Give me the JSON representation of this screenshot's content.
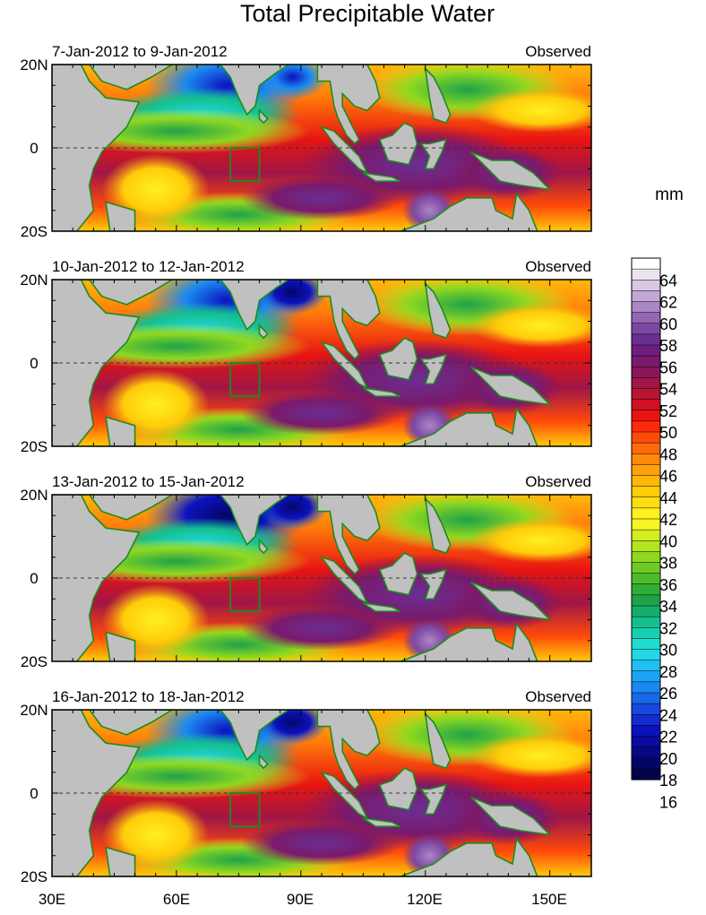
{
  "title": "Total Precipitable Water",
  "unit_label": "mm",
  "latitude_labels": [
    "20N",
    "0",
    "20S"
  ],
  "longitude_labels": [
    "30E",
    "60E",
    "90E",
    "120E",
    "150E"
  ],
  "panels": [
    {
      "date_range": "7-Jan-2012 to 9-Jan-2012",
      "status": "Observed"
    },
    {
      "date_range": "10-Jan-2012 to 12-Jan-2012",
      "status": "Observed"
    },
    {
      "date_range": "13-Jan-2012 to 15-Jan-2012",
      "status": "Observed"
    },
    {
      "date_range": "16-Jan-2012 to 18-Jan-2012",
      "status": "Observed"
    }
  ],
  "colorbar": {
    "labels": [
      "64",
      "62",
      "60",
      "58",
      "56",
      "54",
      "52",
      "50",
      "48",
      "46",
      "44",
      "42",
      "40",
      "38",
      "36",
      "34",
      "32",
      "30",
      "28",
      "26",
      "24",
      "22",
      "20",
      "18",
      "16"
    ],
    "colors": [
      "#ffffff",
      "#ece3f0",
      "#d9c8e3",
      "#c3a6d4",
      "#ab86c4",
      "#9466b4",
      "#7d47a4",
      "#6a2e92",
      "#6d1f80",
      "#7a1a6c",
      "#8a1758",
      "#a01646",
      "#b81434",
      "#d01124",
      "#e81412",
      "#ff2a0a",
      "#ff4a0a",
      "#ff6a0a",
      "#ff8a0a",
      "#ffa20a",
      "#ffb80a",
      "#ffcc0a",
      "#ffde10",
      "#fff020",
      "#f6f626",
      "#d4ee20",
      "#b2e420",
      "#8ed820",
      "#6ccc24",
      "#4cbc2c",
      "#30ac38",
      "#1ea24a",
      "#14ae6a",
      "#14c08e",
      "#16d0b0",
      "#20dcce",
      "#24d6e6",
      "#20c0f2",
      "#1ca4f4",
      "#1a88f0",
      "#1868e8",
      "#1648de",
      "#122cd2",
      "#0c12be",
      "#080aa0",
      "#060884",
      "#040666",
      "#02044a"
    ]
  },
  "colors": {
    "land": "#c0c0c0",
    "coast": "#1e8a1e",
    "box": "#1e8a1e"
  }
}
